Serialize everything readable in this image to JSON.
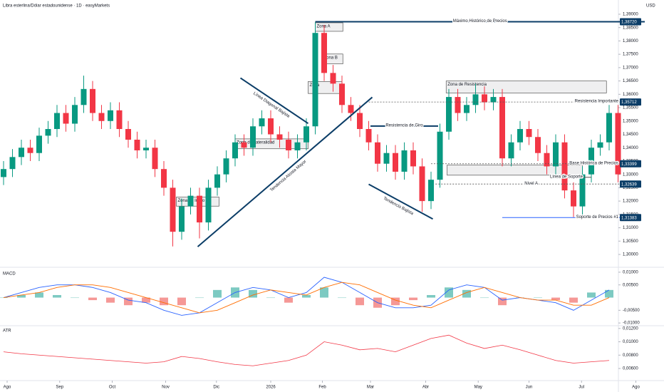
{
  "chart_data": [
    {
      "type": "candlestick",
      "title": "Libra esterlina/Dólar estadounidense · 1D · easyMarkets",
      "currency": "USD",
      "up_color": "#089981",
      "down_color": "#f23645",
      "xlim": [
        0,
        72
      ],
      "ylim": [
        1.296,
        1.3948
      ],
      "yticks": [
        {
          "value": 1.3,
          "label": "1,30000"
        },
        {
          "value": 1.305,
          "label": "1,30500"
        },
        {
          "value": 1.31,
          "label": "1,31000"
        },
        {
          "value": 1.315,
          "label": "1,31500"
        },
        {
          "value": 1.32,
          "label": "1,32000"
        },
        {
          "value": 1.325,
          "label": "1,32500"
        },
        {
          "value": 1.33,
          "label": "1,33000"
        },
        {
          "value": 1.335,
          "label": "1,33500"
        },
        {
          "value": 1.34,
          "label": "1,34000"
        },
        {
          "value": 1.345,
          "label": "1,34500"
        },
        {
          "value": 1.35,
          "label": "1,35000"
        },
        {
          "value": 1.355,
          "label": "1,35500"
        },
        {
          "value": 1.36,
          "label": "1,36000"
        },
        {
          "value": 1.365,
          "label": "1,36500"
        },
        {
          "value": 1.37,
          "label": "1,37000"
        },
        {
          "value": 1.375,
          "label": "1,37500"
        },
        {
          "value": 1.38,
          "label": "1,38000"
        },
        {
          "value": 1.385,
          "label": "1,38500"
        },
        {
          "value": 1.39,
          "label": "1,39000"
        }
      ],
      "open": [
        1.329,
        1.332,
        1.3365,
        1.34,
        1.338,
        1.3445,
        1.347,
        1.353,
        1.349,
        1.356,
        1.362,
        1.353,
        1.35,
        1.354,
        1.347,
        1.343,
        1.339,
        1.34,
        1.332,
        1.325,
        1.3085,
        1.318,
        1.322,
        1.312,
        1.325,
        1.33,
        1.336,
        1.342,
        1.34,
        1.348,
        1.351,
        1.345,
        1.343,
        1.339,
        1.342,
        1.348,
        1.383,
        1.368,
        1.364,
        1.356,
        1.353,
        1.347,
        1.342,
        1.334,
        1.338,
        1.331,
        1.339,
        1.333,
        1.32,
        1.328,
        1.346,
        1.359,
        1.353,
        1.356,
        1.36,
        1.357,
        1.359,
        1.336,
        1.342,
        1.347,
        1.344,
        1.338,
        1.333,
        1.342,
        1.324,
        1.318,
        1.33,
        1.34,
        1.342,
        1.353
      ],
      "high": [
        1.335,
        1.3395,
        1.343,
        1.343,
        1.3475,
        1.35,
        1.356,
        1.356,
        1.359,
        1.367,
        1.365,
        1.356,
        1.357,
        1.357,
        1.35,
        1.346,
        1.343,
        1.343,
        1.335,
        1.328,
        1.321,
        1.325,
        1.325,
        1.328,
        1.333,
        1.339,
        1.345,
        1.345,
        1.351,
        1.354,
        1.354,
        1.348,
        1.346,
        1.345,
        1.351,
        1.387,
        1.386,
        1.371,
        1.367,
        1.359,
        1.356,
        1.35,
        1.345,
        1.341,
        1.341,
        1.342,
        1.342,
        1.336,
        1.331,
        1.349,
        1.362,
        1.362,
        1.359,
        1.364,
        1.363,
        1.362,
        1.362,
        1.345,
        1.35,
        1.35,
        1.347,
        1.341,
        1.345,
        1.345,
        1.327,
        1.333,
        1.343,
        1.345,
        1.356,
        1.356
      ],
      "low": [
        1.326,
        1.329,
        1.3335,
        1.335,
        1.335,
        1.3415,
        1.344,
        1.346,
        1.346,
        1.353,
        1.35,
        1.347,
        1.347,
        1.344,
        1.34,
        1.336,
        1.336,
        1.329,
        1.322,
        1.303,
        1.3055,
        1.315,
        1.306,
        1.309,
        1.322,
        1.327,
        1.333,
        1.337,
        1.337,
        1.345,
        1.342,
        1.34,
        1.336,
        1.336,
        1.339,
        1.345,
        1.365,
        1.361,
        1.353,
        1.35,
        1.344,
        1.339,
        1.331,
        1.331,
        1.328,
        1.328,
        1.33,
        1.316,
        1.317,
        1.325,
        1.343,
        1.35,
        1.35,
        1.353,
        1.354,
        1.354,
        1.333,
        1.333,
        1.339,
        1.341,
        1.335,
        1.33,
        1.33,
        1.321,
        1.314,
        1.315,
        1.327,
        1.337,
        1.339,
        1.327
      ],
      "close": [
        1.332,
        1.3365,
        1.34,
        1.338,
        1.3445,
        1.347,
        1.353,
        1.349,
        1.356,
        1.362,
        1.353,
        1.35,
        1.354,
        1.347,
        1.343,
        1.339,
        1.34,
        1.332,
        1.325,
        1.3085,
        1.318,
        1.322,
        1.312,
        1.325,
        1.33,
        1.336,
        1.342,
        1.34,
        1.348,
        1.351,
        1.345,
        1.343,
        1.339,
        1.342,
        1.348,
        1.383,
        1.368,
        1.364,
        1.356,
        1.353,
        1.347,
        1.342,
        1.334,
        1.338,
        1.331,
        1.339,
        1.333,
        1.32,
        1.328,
        1.346,
        1.359,
        1.353,
        1.356,
        1.36,
        1.357,
        1.359,
        1.336,
        1.342,
        1.347,
        1.344,
        1.338,
        1.333,
        1.342,
        1.324,
        1.318,
        1.33,
        1.34,
        1.342,
        1.353,
        1.33
      ],
      "zones": [
        {
          "label": "Zona A",
          "x": [
            35.0,
            38.1
          ],
          "y": [
            1.3836,
            1.3868
          ]
        },
        {
          "label": "Zona B",
          "x": [
            35.8,
            38.1
          ],
          "y": [
            1.3714,
            1.3751
          ]
        },
        {
          "label": "Zona",
          "x": [
            34.2,
            38.0
          ],
          "y": [
            1.3603,
            1.3648
          ]
        },
        {
          "label": "Zona de Resistencia",
          "x": [
            49.7,
            67.7
          ],
          "y": [
            1.3605,
            1.365
          ]
        },
        {
          "label": "Zona de Lateralidad",
          "x": [
            26.0,
            34.2
          ],
          "y": [
            1.3396,
            1.3433
          ]
        },
        {
          "label": "Zona de Inicio",
          "x": [
            19.4,
            24.2
          ],
          "y": [
            1.3181,
            1.3215
          ]
        },
        {
          "label": null,
          "x": [
            49.8,
            65.0
          ],
          "y": [
            1.3297,
            1.3335
          ]
        }
      ],
      "trendlines": [
        {
          "label": "Tendencia Alcista Mayor",
          "x": [
            21.8,
            41.4
          ],
          "y": [
            1.3029,
            1.3589
          ]
        },
        {
          "label": "Línea Diagonal Bajista",
          "x": [
            26.6,
            34.2
          ],
          "y": [
            1.3661,
            1.3491
          ]
        },
        {
          "label": "Tendencia Bajista",
          "x": [
            41.0,
            48.2
          ],
          "y": [
            1.3263,
            1.3133
          ]
        }
      ],
      "line_color": "#0b3d67",
      "levels": [
        {
          "text": "Máximo Histórico de Precios",
          "price": {
            "value": 1.3872,
            "label": "1,38720"
          },
          "from": 35,
          "to": 72,
          "dashed": false,
          "align": "middle",
          "color": "#0b3d67"
        },
        {
          "text": "Resistencia Importante",
          "price": {
            "value": 1.35712,
            "label": "1,35712"
          },
          "from": 41,
          "to": 70,
          "dashed": true,
          "align": "end",
          "color": "#555555"
        },
        {
          "text": "Resistencia de Giro",
          "price": 1.3481,
          "from": 41.2,
          "to": 48.8,
          "dashed": false,
          "align": "middle",
          "color": "#0b3d67"
        },
        {
          "text": "Base Histórica de Precios",
          "price": {
            "value": 1.33399,
            "label": "1,33399"
          },
          "from": 48,
          "to": 70,
          "dashed": true,
          "align": "end",
          "color": "#555555"
        },
        {
          "text": "Línea de Soporte",
          "price": 1.3289,
          "from": 62.4,
          "to": 66,
          "dashed": false,
          "align": "end",
          "color": "#555555"
        },
        {
          "text": "Nivel A",
          "price": {
            "value": 1.32639,
            "label": "1,32639"
          },
          "from": 48.5,
          "to": 70,
          "dashed": true,
          "align": "middle",
          "color": "#555555"
        },
        {
          "text": "Soporte de Precios #1",
          "price": {
            "value": 1.31383,
            "label": "1,31383"
          },
          "from": 56,
          "to": 70,
          "dashed": false,
          "align": "end",
          "color": "#2962ff"
        }
      ]
    },
    {
      "type": "macd",
      "title": "MACD",
      "xlim": [
        0,
        72
      ],
      "ylim": [
        -0.0108,
        0.0111
      ],
      "yticks": [
        {
          "value": 0.01,
          "label": "0,01000"
        },
        {
          "value": 0.005,
          "label": "0,00500"
        },
        {
          "value": -0.005,
          "label": "-0,00500"
        },
        {
          "value": -0.01,
          "label": "-0,01000"
        }
      ],
      "x": [
        0,
        2,
        4,
        6,
        8,
        10,
        12,
        14,
        16,
        18,
        20,
        22,
        24,
        26,
        28,
        30,
        32,
        34,
        36,
        38,
        40,
        42,
        44,
        46,
        48,
        50,
        52,
        54,
        56,
        58,
        60,
        62,
        64,
        66,
        68
      ],
      "series": [
        {
          "color": "#2962ff",
          "values": [
            0.0,
            0.002,
            0.004,
            0.005,
            0.005,
            0.004,
            0.002,
            -0.001,
            -0.002,
            -0.005,
            -0.007,
            -0.006,
            -0.002,
            0.002,
            0.004,
            0.003,
            0.0,
            0.002,
            0.008,
            0.006,
            0.002,
            -0.002,
            -0.004,
            -0.004,
            -0.003,
            0.003,
            0.005,
            0.004,
            -0.001,
            0.0,
            -0.001,
            -0.002,
            -0.005,
            -0.001,
            0.003
          ]
        },
        {
          "color": "#ff6d00",
          "values": [
            0.0,
            0.001,
            0.002,
            0.004,
            0.005,
            0.005,
            0.004,
            0.002,
            0.0,
            -0.002,
            -0.004,
            -0.006,
            -0.005,
            -0.002,
            0.001,
            0.003,
            0.002,
            0.001,
            0.004,
            0.006,
            0.005,
            0.002,
            -0.001,
            -0.003,
            -0.004,
            -0.001,
            0.002,
            0.004,
            0.002,
            0.0,
            -0.001,
            -0.001,
            -0.003,
            -0.003,
            0.0
          ]
        }
      ],
      "histogram": {
        "colors": [
          "#26a69a",
          "#ef5350"
        ],
        "values": [
          0,
          0.001,
          0.002,
          0.001,
          0,
          -0.001,
          -0.002,
          -0.003,
          -0.002,
          -0.003,
          -0.003,
          0,
          0.003,
          0.004,
          0.003,
          0,
          -0.002,
          0.001,
          0.004,
          0,
          -0.003,
          -0.004,
          -0.003,
          -0.001,
          0.001,
          0.004,
          0.003,
          0,
          -0.003,
          0,
          0,
          -0.001,
          -0.002,
          0.002,
          0.003
        ]
      }
    },
    {
      "type": "line",
      "title": "ATR",
      "xlim": [
        0,
        72
      ],
      "ylim": [
        0.0044,
        0.0123
      ],
      "yticks": [
        {
          "value": 0.012,
          "label": "0,01200"
        },
        {
          "value": 0.01,
          "label": "0,01000"
        },
        {
          "value": 0.008,
          "label": "0,00800"
        },
        {
          "value": 0.006,
          "label": "0,00600"
        }
      ],
      "x": [
        0,
        2,
        4,
        6,
        8,
        10,
        12,
        14,
        16,
        18,
        20,
        22,
        24,
        26,
        28,
        30,
        32,
        34,
        36,
        38,
        40,
        42,
        44,
        46,
        48,
        50,
        52,
        54,
        56,
        58,
        60,
        62,
        64,
        66,
        68
      ],
      "series": [
        {
          "color": "#f23645",
          "values": [
            0.0085,
            0.0082,
            0.008,
            0.0078,
            0.0076,
            0.0074,
            0.0072,
            0.007,
            0.0068,
            0.007,
            0.0078,
            0.0075,
            0.007,
            0.0066,
            0.0064,
            0.0068,
            0.0072,
            0.008,
            0.01,
            0.0095,
            0.0088,
            0.009,
            0.0085,
            0.0095,
            0.0105,
            0.011,
            0.0098,
            0.009,
            0.0095,
            0.0088,
            0.008,
            0.0072,
            0.0068,
            0.007,
            0.0072
          ]
        }
      ],
      "xticks": [
        {
          "value": 0.4,
          "label": "Ago"
        },
        {
          "value": 6.3,
          "label": "Sep"
        },
        {
          "value": 12.2,
          "label": "Oct"
        },
        {
          "value": 18.2,
          "label": "Nov"
        },
        {
          "value": 23.9,
          "label": "Dic"
        },
        {
          "value": 30,
          "label": "2026"
        },
        {
          "value": 35.8,
          "label": "Feb"
        },
        {
          "value": 41.2,
          "label": "Mar"
        },
        {
          "value": 47.4,
          "label": "Abr"
        },
        {
          "value": 53.3,
          "label": "May"
        },
        {
          "value": 59,
          "label": "Jun"
        },
        {
          "value": 64.9,
          "label": "Jul"
        },
        {
          "value": 71,
          "label": "Ago"
        }
      ]
    }
  ]
}
